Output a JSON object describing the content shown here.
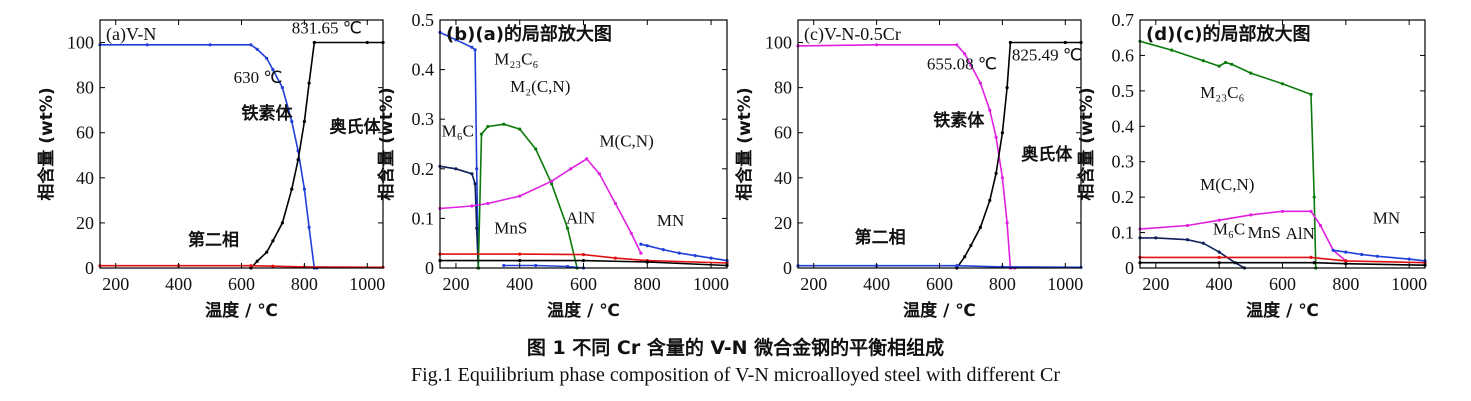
{
  "caption": {
    "zh": "图 1  不同 Cr 含量的 V-N 微合金钢的平衡相组成",
    "en": "Fig.1  Equilibrium phase composition of V-N microalloyed steel with different Cr"
  },
  "colors": {
    "ferrite_a": "#1f3fd8",
    "austenite": "#000000",
    "magenta": "#e020e0",
    "green": "#0a7a0a",
    "red": "#e01010",
    "navy": "#10205a",
    "purple": "#8a2be2"
  },
  "chart_data": [
    {
      "type": "line",
      "panel": "(a)",
      "title": "V-N",
      "xlabel": "温度 / ℃",
      "ylabel": "相含量 (wt%)",
      "xlim": [
        150,
        1050
      ],
      "ylim": [
        0,
        110
      ],
      "xticks": [
        200,
        400,
        600,
        800,
        1000
      ],
      "yticks": [
        0,
        20,
        40,
        60,
        80,
        100
      ],
      "annotations": [
        {
          "text": "831.65 ℃",
          "x": 760,
          "y": 104
        },
        {
          "text": "630 ℃",
          "x": 575,
          "y": 82
        },
        {
          "text": "铁素体",
          "x": 600,
          "y": 66
        },
        {
          "text": "奥氏体",
          "x": 880,
          "y": 60
        },
        {
          "text": "第二相",
          "x": 430,
          "y": 10
        }
      ],
      "series": [
        {
          "name": "铁素体",
          "color": "#1f3fd8",
          "x": [
            150,
            300,
            500,
            630,
            650,
            680,
            700,
            730,
            760,
            780,
            800,
            815,
            831.65,
            840
          ],
          "y": [
            99,
            99,
            99,
            99,
            97,
            93,
            88,
            80,
            65,
            52,
            35,
            18,
            0,
            0
          ]
        },
        {
          "name": "奥氏体",
          "color": "#000000",
          "x": [
            630,
            650,
            680,
            700,
            730,
            760,
            780,
            800,
            815,
            831.65,
            1000,
            1050
          ],
          "y": [
            0,
            3,
            7,
            12,
            20,
            35,
            48,
            65,
            82,
            100,
            100,
            100
          ]
        },
        {
          "name": "第二相",
          "color": "#e01010",
          "x": [
            150,
            400,
            630,
            700,
            800,
            1050
          ],
          "y": [
            1,
            1,
            1,
            0.8,
            0.5,
            0.3
          ]
        }
      ]
    },
    {
      "type": "line",
      "panel": "(b)",
      "title": "(a)的局部放大图",
      "xlabel": "温度 / ℃",
      "ylabel": "相含量 (wt%)",
      "xlim": [
        150,
        1050
      ],
      "ylim": [
        0,
        0.5
      ],
      "xticks": [
        200,
        400,
        600,
        800,
        1000
      ],
      "yticks": [
        0,
        0.1,
        0.2,
        0.3,
        0.4,
        0.5
      ],
      "annotations": [
        {
          "text": "M₂₃C₆",
          "x": 320,
          "y": 0.41
        },
        {
          "text": "M₂(C,N)",
          "x": 370,
          "y": 0.355
        },
        {
          "text": "M₆C",
          "x": 155,
          "y": 0.265
        },
        {
          "text": "M(C,N)",
          "x": 650,
          "y": 0.245
        },
        {
          "text": "MnS",
          "x": 320,
          "y": 0.07
        },
        {
          "text": "AlN",
          "x": 545,
          "y": 0.09
        },
        {
          "text": "MN",
          "x": 830,
          "y": 0.085
        }
      ],
      "series": [
        {
          "name": "M₂₃C₆",
          "color": "#1f3fd8",
          "x": [
            150,
            200,
            250,
            260,
            265,
            270
          ],
          "y": [
            0.475,
            0.46,
            0.445,
            0.44,
            0.2,
            0
          ]
        },
        {
          "name": "M₆C",
          "color": "#10205a",
          "x": [
            150,
            200,
            250,
            260,
            265,
            270
          ],
          "y": [
            0.205,
            0.2,
            0.19,
            0.17,
            0.08,
            0
          ]
        },
        {
          "name": "M₂(C,N)",
          "color": "#0a7a0a",
          "x": [
            270,
            280,
            300,
            350,
            400,
            450,
            500,
            550,
            580
          ],
          "y": [
            0,
            0.27,
            0.285,
            0.29,
            0.28,
            0.24,
            0.17,
            0.08,
            0
          ]
        },
        {
          "name": "M(C,N)",
          "color": "#e020e0",
          "x": [
            150,
            250,
            300,
            400,
            500,
            560,
            610,
            650,
            700,
            750,
            780
          ],
          "y": [
            0.12,
            0.125,
            0.13,
            0.145,
            0.175,
            0.2,
            0.22,
            0.19,
            0.13,
            0.07,
            0.03
          ]
        },
        {
          "name": "MnS",
          "color": "#e01010",
          "x": [
            150,
            400,
            600,
            700,
            800,
            1050
          ],
          "y": [
            0.028,
            0.028,
            0.027,
            0.02,
            0.015,
            0.01
          ]
        },
        {
          "name": "AlN",
          "color": "#000000",
          "x": [
            150,
            400,
            600,
            800,
            1050
          ],
          "y": [
            0.015,
            0.015,
            0.015,
            0.012,
            0.005
          ]
        },
        {
          "name": "MN",
          "color": "#1f3fd8",
          "x": [
            780,
            800,
            850,
            900,
            950,
            1000,
            1050
          ],
          "y": [
            0.048,
            0.045,
            0.037,
            0.03,
            0.025,
            0.02,
            0.015
          ]
        },
        {
          "name": "",
          "color": "#1f3fd8",
          "x": [
            350,
            450,
            550,
            600
          ],
          "y": [
            0.005,
            0.005,
            0.003,
            0
          ]
        }
      ]
    },
    {
      "type": "line",
      "panel": "(c)",
      "title": "V-N-0.5Cr",
      "xlabel": "温度 / ℃",
      "ylabel": "相含量 (wt%)",
      "xlim": [
        150,
        1050
      ],
      "ylim": [
        0,
        110
      ],
      "xticks": [
        200,
        400,
        600,
        800,
        1000
      ],
      "yticks": [
        0,
        20,
        40,
        60,
        80,
        100
      ],
      "annotations": [
        {
          "text": "655.08 ℃",
          "x": 560,
          "y": 88
        },
        {
          "text": "825.49 ℃",
          "x": 830,
          "y": 92
        },
        {
          "text": "铁素体",
          "x": 580,
          "y": 63
        },
        {
          "text": "奥氏体",
          "x": 860,
          "y": 48
        },
        {
          "text": "第二相",
          "x": 330,
          "y": 11
        }
      ],
      "series": [
        {
          "name": "铁素体",
          "color": "#e020e0",
          "x": [
            150,
            400,
            655.08,
            680,
            700,
            730,
            760,
            780,
            800,
            815,
            825.49,
            840
          ],
          "y": [
            98.5,
            99,
            99,
            95,
            90,
            82,
            70,
            58,
            40,
            20,
            0,
            0
          ]
        },
        {
          "name": "奥氏体",
          "color": "#000000",
          "x": [
            655.08,
            680,
            700,
            730,
            760,
            780,
            800,
            815,
            825.49,
            1000,
            1050
          ],
          "y": [
            0,
            5,
            10,
            18,
            30,
            42,
            60,
            80,
            100,
            100,
            100
          ]
        },
        {
          "name": "第二相",
          "color": "#1f3fd8",
          "x": [
            150,
            400,
            655,
            800,
            1050
          ],
          "y": [
            1,
            1,
            1,
            0.5,
            0.3
          ]
        }
      ]
    },
    {
      "type": "line",
      "panel": "(d)",
      "title": "(c)的局部放大图",
      "xlabel": "温度 / ℃",
      "ylabel": "相含量 (wt%)",
      "xlim": [
        150,
        1050
      ],
      "ylim": [
        0,
        0.7
      ],
      "xticks": [
        200,
        400,
        600,
        800,
        1000
      ],
      "yticks": [
        0,
        0.1,
        0.2,
        0.3,
        0.4,
        0.5,
        0.6,
        0.7
      ],
      "annotations": [
        {
          "text": "M₂₃C₆",
          "x": 340,
          "y": 0.48
        },
        {
          "text": "M(C,N)",
          "x": 340,
          "y": 0.22
        },
        {
          "text": "M₆C",
          "x": 380,
          "y": 0.095
        },
        {
          "text": "MnS",
          "x": 490,
          "y": 0.085
        },
        {
          "text": "AlN",
          "x": 610,
          "y": 0.082
        },
        {
          "text": "MN",
          "x": 885,
          "y": 0.125
        }
      ],
      "series": [
        {
          "name": "M₂₃C₆",
          "color": "#0a7a0a",
          "x": [
            150,
            250,
            350,
            400,
            420,
            440,
            500,
            600,
            690,
            700,
            705
          ],
          "y": [
            0.64,
            0.615,
            0.585,
            0.57,
            0.58,
            0.575,
            0.55,
            0.52,
            0.49,
            0.2,
            0
          ]
        },
        {
          "name": "M(C,N)",
          "color": "#e020e0",
          "x": [
            150,
            300,
            400,
            500,
            600,
            690,
            720,
            760,
            800
          ],
          "y": [
            0.11,
            0.12,
            0.135,
            0.15,
            0.16,
            0.16,
            0.12,
            0.05,
            0.02
          ]
        },
        {
          "name": "M₆C",
          "color": "#10205a",
          "x": [
            150,
            200,
            300,
            350,
            400,
            450,
            480
          ],
          "y": [
            0.085,
            0.085,
            0.08,
            0.07,
            0.045,
            0.015,
            0
          ]
        },
        {
          "name": "MnS",
          "color": "#e01010",
          "x": [
            150,
            400,
            690,
            800,
            1050
          ],
          "y": [
            0.03,
            0.03,
            0.03,
            0.02,
            0.015
          ]
        },
        {
          "name": "AlN",
          "color": "#000000",
          "x": [
            150,
            400,
            700,
            800,
            1050
          ],
          "y": [
            0.015,
            0.015,
            0.015,
            0.012,
            0.008
          ]
        },
        {
          "name": "MN",
          "color": "#1f3fd8",
          "x": [
            760,
            800,
            850,
            900,
            1000,
            1050
          ],
          "y": [
            0.05,
            0.045,
            0.038,
            0.033,
            0.025,
            0.02
          ]
        }
      ]
    }
  ]
}
